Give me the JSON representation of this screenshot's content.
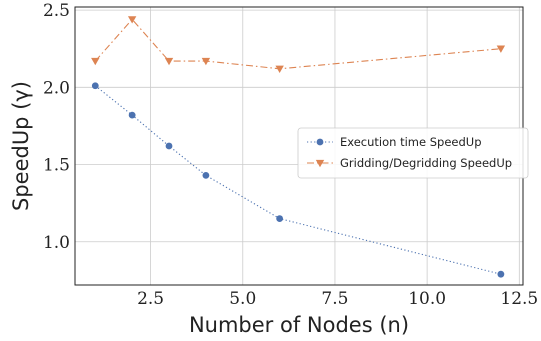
{
  "chart_data": {
    "type": "line",
    "title": "",
    "xlabel": "Number of Nodes (n)",
    "ylabel": "SpeedUp (γ)",
    "xlim": [
      0.45,
      12.6
    ],
    "ylim": [
      0.72,
      2.52
    ],
    "xticks": [
      2.5,
      5.0,
      7.5,
      10.0,
      12.5
    ],
    "xtick_labels": [
      "2.5",
      "5.0",
      "7.5",
      "10.0",
      "12.5"
    ],
    "yticks": [
      1.0,
      1.5,
      2.0,
      2.5
    ],
    "ytick_labels": [
      "1.0",
      "1.5",
      "2.0",
      "2.5"
    ],
    "grid": true,
    "legend_position": "center-right",
    "series": [
      {
        "name": "Execution time SpeedUp",
        "color": "#4c72b0",
        "marker": "circle",
        "line_style": "dotted",
        "x": [
          1,
          2,
          3,
          4,
          6,
          12
        ],
        "y": [
          2.01,
          1.82,
          1.62,
          1.43,
          1.15,
          0.79
        ]
      },
      {
        "name": "Gridding/Degridding SpeedUp",
        "color": "#dd8452",
        "marker": "triangle-down",
        "line_style": "dashdot",
        "x": [
          1,
          2,
          3,
          4,
          6,
          12
        ],
        "y": [
          2.17,
          2.44,
          2.17,
          2.17,
          2.12,
          2.25
        ]
      }
    ]
  }
}
